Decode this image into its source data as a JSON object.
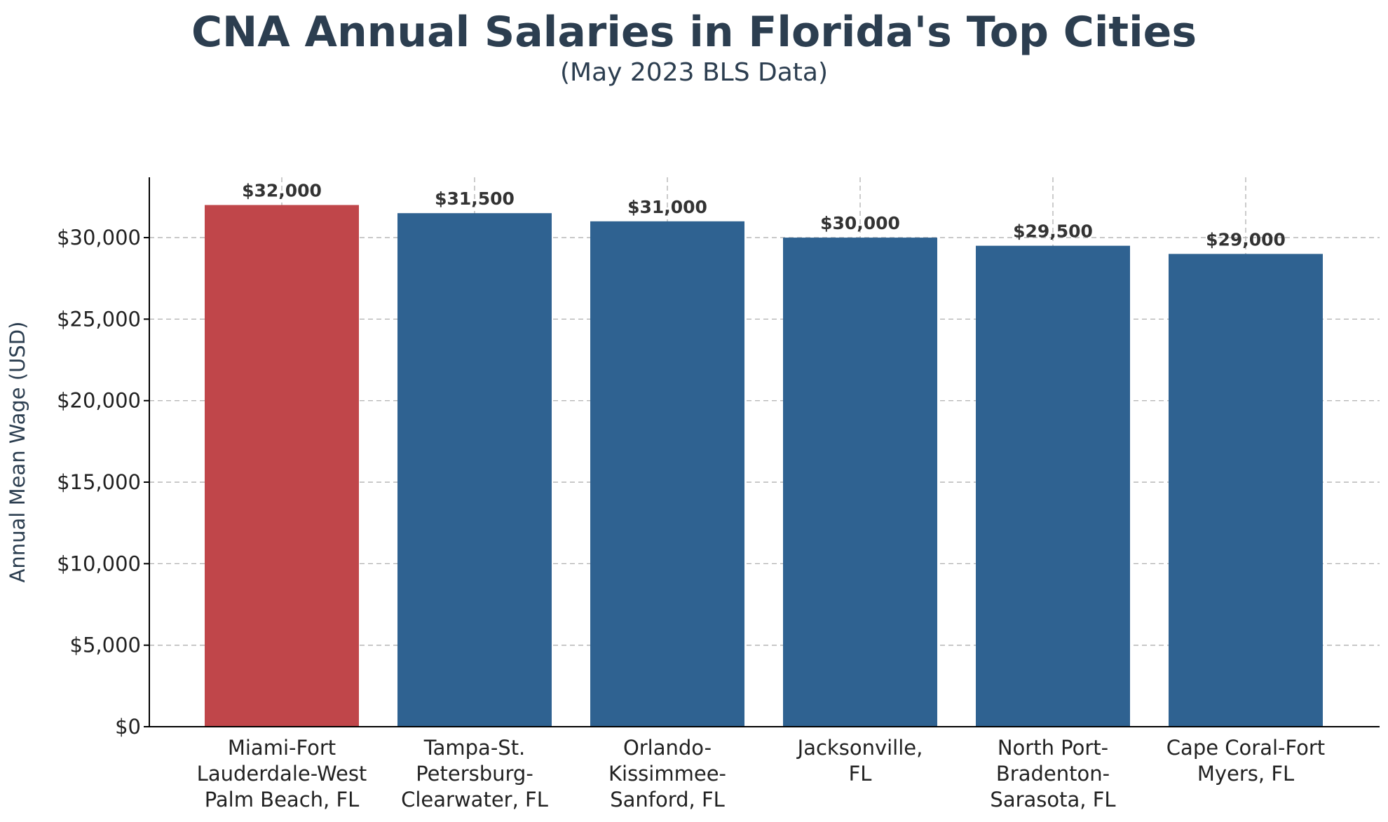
{
  "chart_data": {
    "type": "bar",
    "title": "CNA Annual Salaries in Florida's Top Cities",
    "subtitle": "(May 2023 BLS Data)",
    "xlabel": "",
    "ylabel": "Annual Mean Wage (USD)",
    "ylim": [
      0,
      33700
    ],
    "yticks": [
      0,
      5000,
      10000,
      15000,
      20000,
      25000,
      30000
    ],
    "ytick_labels": [
      "$0",
      "$5,000",
      "$10,000",
      "$15,000",
      "$20,000",
      "$25,000",
      "$30,000"
    ],
    "grid": true,
    "categories": [
      [
        "Miami-Fort",
        "Lauderdale-West",
        "Palm Beach, FL"
      ],
      [
        "Tampa-St.",
        "Petersburg-",
        "Clearwater, FL"
      ],
      [
        "Orlando-",
        "Kissimmee-",
        "Sanford, FL"
      ],
      [
        "Jacksonville,",
        "FL"
      ],
      [
        "North Port-",
        "Bradenton-",
        "Sarasota, FL"
      ],
      [
        "Cape Coral-Fort",
        "Myers, FL"
      ]
    ],
    "values": [
      32000,
      31500,
      31000,
      30000,
      29500,
      29000
    ],
    "value_labels": [
      "$32,000",
      "$31,500",
      "$31,000",
      "$30,000",
      "$29,500",
      "$29,000"
    ],
    "colors": [
      "#c0464a",
      "#2f6291",
      "#2f6291",
      "#2f6291",
      "#2f6291",
      "#2f6291"
    ]
  }
}
